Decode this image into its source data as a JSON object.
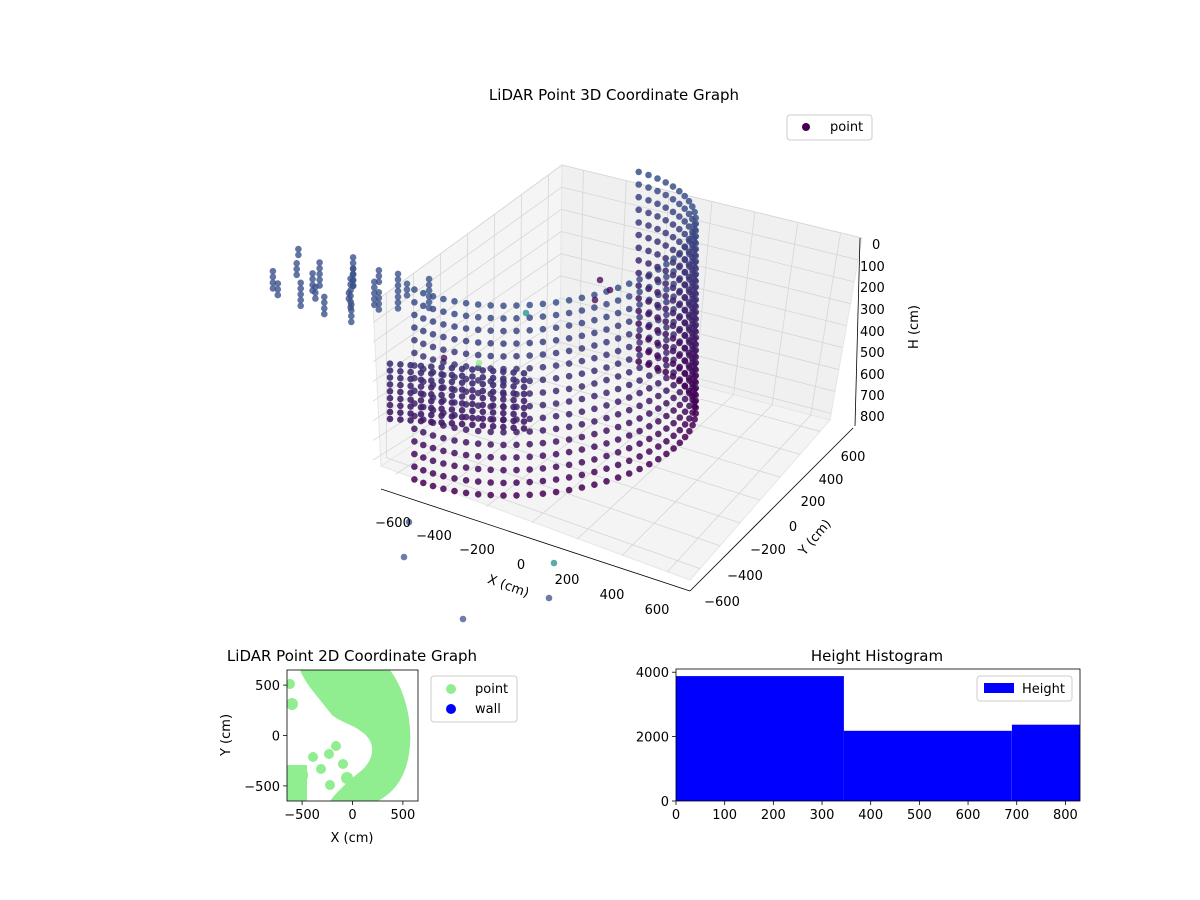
{
  "colors": {
    "background": "#ffffff",
    "pane_light": "#f2f2f2",
    "pane_side": "#ebebeb",
    "grid": "#cccccc",
    "point_dark": "#440154",
    "point_mid": "#3b528b",
    "point_teal": "#21918c",
    "point_green": "#8fea8a",
    "wall": "#0000ff",
    "histogram_bar": "#0000ff"
  },
  "chart_data": [
    {
      "type": "scatter",
      "title": "LiDAR Point 3D Coordinate Graph",
      "xlabel": "X (cm)",
      "ylabel": "Y (cm)",
      "zlabel": "H (cm)",
      "x_ticks": [
        "−600",
        "−400",
        "−200",
        "0",
        "200",
        "400",
        "600"
      ],
      "y_ticks": [
        "−600",
        "−400",
        "−200",
        "0",
        "200",
        "400",
        "600"
      ],
      "z_ticks": [
        "0",
        "100",
        "200",
        "300",
        "400",
        "500",
        "600",
        "700",
        "800"
      ],
      "xlim": [
        -650,
        650
      ],
      "ylim": [
        -650,
        650
      ],
      "zlim": [
        0,
        830
      ],
      "z_inverted": true,
      "legend": {
        "entries": [
          "point"
        ],
        "placement": "top-right"
      },
      "grid": true,
      "colormap": "viridis",
      "structure": {
        "wall_arc": {
          "shape": "circular arc",
          "radius_cm": 640,
          "height_range_cm": [
            0,
            830
          ]
        },
        "clusters": "scattered low points near x −650…−100, y −650…−300"
      }
    },
    {
      "type": "scatter",
      "title": "LiDAR Point 2D Coordinate Graph",
      "xlabel": "X (cm)",
      "ylabel": "Y (cm)",
      "x_ticks": [
        "−500",
        "0",
        "500"
      ],
      "y_ticks": [
        "500",
        "0",
        "−500"
      ],
      "xlim": [
        -650,
        650
      ],
      "ylim": [
        -650,
        650
      ],
      "legend": {
        "entries": [
          "point",
          "wall"
        ],
        "placement": "outside-right"
      },
      "series": [
        {
          "name": "point",
          "color": "#90ee90"
        },
        {
          "name": "wall",
          "color": "#0000ff"
        }
      ]
    },
    {
      "type": "bar",
      "title": "Height Histogram",
      "x_ticks": [
        "0",
        "100",
        "200",
        "300",
        "400",
        "500",
        "600",
        "700",
        "800"
      ],
      "y_ticks": [
        "0",
        "2000",
        "4000"
      ],
      "xlim": [
        0,
        830
      ],
      "ylim": [
        0,
        4100
      ],
      "legend": {
        "entries": [
          "Height"
        ],
        "placement": "top-right"
      },
      "bins": [
        {
          "x0": 0,
          "x1": 345,
          "count": 3880
        },
        {
          "x0": 345,
          "x1": 690,
          "count": 2180
        },
        {
          "x0": 690,
          "x1": 830,
          "count": 2370
        }
      ]
    }
  ]
}
